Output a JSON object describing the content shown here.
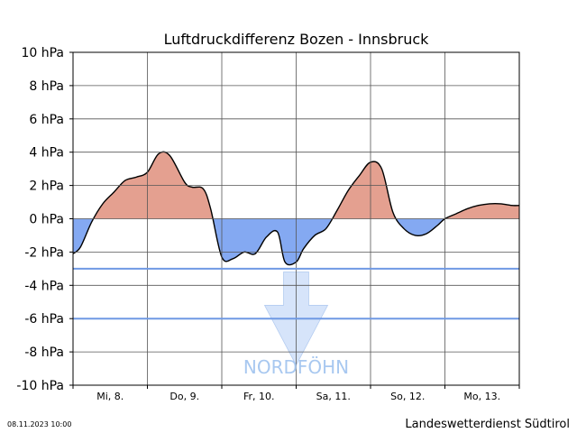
{
  "chart_data": {
    "type": "area",
    "title": "Luftdruckdifferenz Bozen - Innsbruck",
    "xlabel": "",
    "ylabel": "",
    "ylim": [
      -10,
      10
    ],
    "yticks": [
      10,
      8,
      6,
      4,
      2,
      0,
      -2,
      -4,
      -6,
      -8,
      -10
    ],
    "ytick_labels": [
      "10 hPa",
      "8 hPa",
      "6 hPa",
      "4 hPa",
      "2 hPa",
      "0 hPa",
      "-2 hPa",
      "-4 hPa",
      "-6 hPa",
      "-8 hPa",
      "-10 hPa"
    ],
    "xlim": [
      0,
      6
    ],
    "day_labels": [
      "Mi, 8.",
      "Do, 9.",
      "Fr, 10.",
      "Sa, 11.",
      "So, 12.",
      "Mo, 13."
    ],
    "grid": true,
    "x": [
      0,
      0.1,
      0.25,
      0.4,
      0.55,
      0.7,
      0.85,
      1.0,
      1.15,
      1.3,
      1.5,
      1.6,
      1.75,
      1.85,
      2.0,
      2.15,
      2.3,
      2.45,
      2.6,
      2.75,
      2.85,
      3.0,
      3.1,
      3.25,
      3.4,
      3.55,
      3.7,
      3.85,
      4.0,
      4.15,
      4.3,
      4.45,
      4.6,
      4.75,
      4.9,
      5.0,
      5.15,
      5.3,
      5.45,
      5.6,
      5.75,
      5.9,
      6.0
    ],
    "values": [
      -2.1,
      -1.7,
      -0.2,
      0.9,
      1.6,
      2.3,
      2.5,
      2.8,
      3.9,
      3.8,
      2.2,
      1.9,
      1.8,
      0.6,
      -2.3,
      -2.4,
      -2.0,
      -2.1,
      -1.1,
      -0.8,
      -2.6,
      -2.6,
      -1.8,
      -1.0,
      -0.6,
      0.5,
      1.7,
      2.6,
      3.4,
      3.0,
      0.4,
      -0.6,
      -1.0,
      -0.9,
      -0.4,
      0.0,
      0.3,
      0.6,
      0.8,
      0.9,
      0.9,
      0.8,
      0.8
    ],
    "positive_color": "#e4a090",
    "negative_color": "#84a9f2",
    "reference_lines": [
      -3,
      -6
    ],
    "reference_color": "#6f99e4",
    "annotation": {
      "text": "NORDFÖHN",
      "color": "#a8c8f0",
      "arrow_color": "#cfe0fa"
    }
  },
  "footer": {
    "timestamp": "08.11.2023 10:00",
    "source": "Landeswetterdienst Südtirol"
  }
}
